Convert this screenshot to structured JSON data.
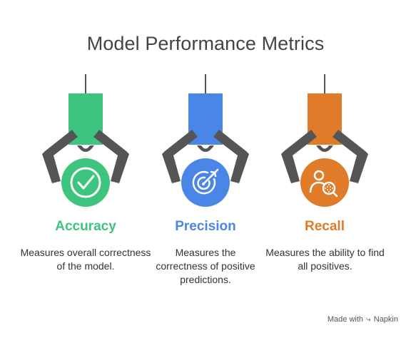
{
  "title": "Model Performance Metrics",
  "metrics": [
    {
      "label": "Accuracy",
      "description": "Measures overall correctness of the model.",
      "color": "#3DC47E",
      "icon": "checkmark-icon"
    },
    {
      "label": "Precision",
      "description": "Measures the correctness of positive predictions.",
      "color": "#4A86E8",
      "icon": "target-icon"
    },
    {
      "label": "Recall",
      "description": "Measures the ability to find all positives.",
      "color": "#E07B2A",
      "icon": "person-search-icon"
    }
  ],
  "footer": {
    "made_with": "Made with",
    "brand": "Napkin",
    "brand_icon": "napkin-logo-icon"
  },
  "colors": {
    "claw_gray": "#555555",
    "title_text": "#444444",
    "body_text": "#333333"
  }
}
